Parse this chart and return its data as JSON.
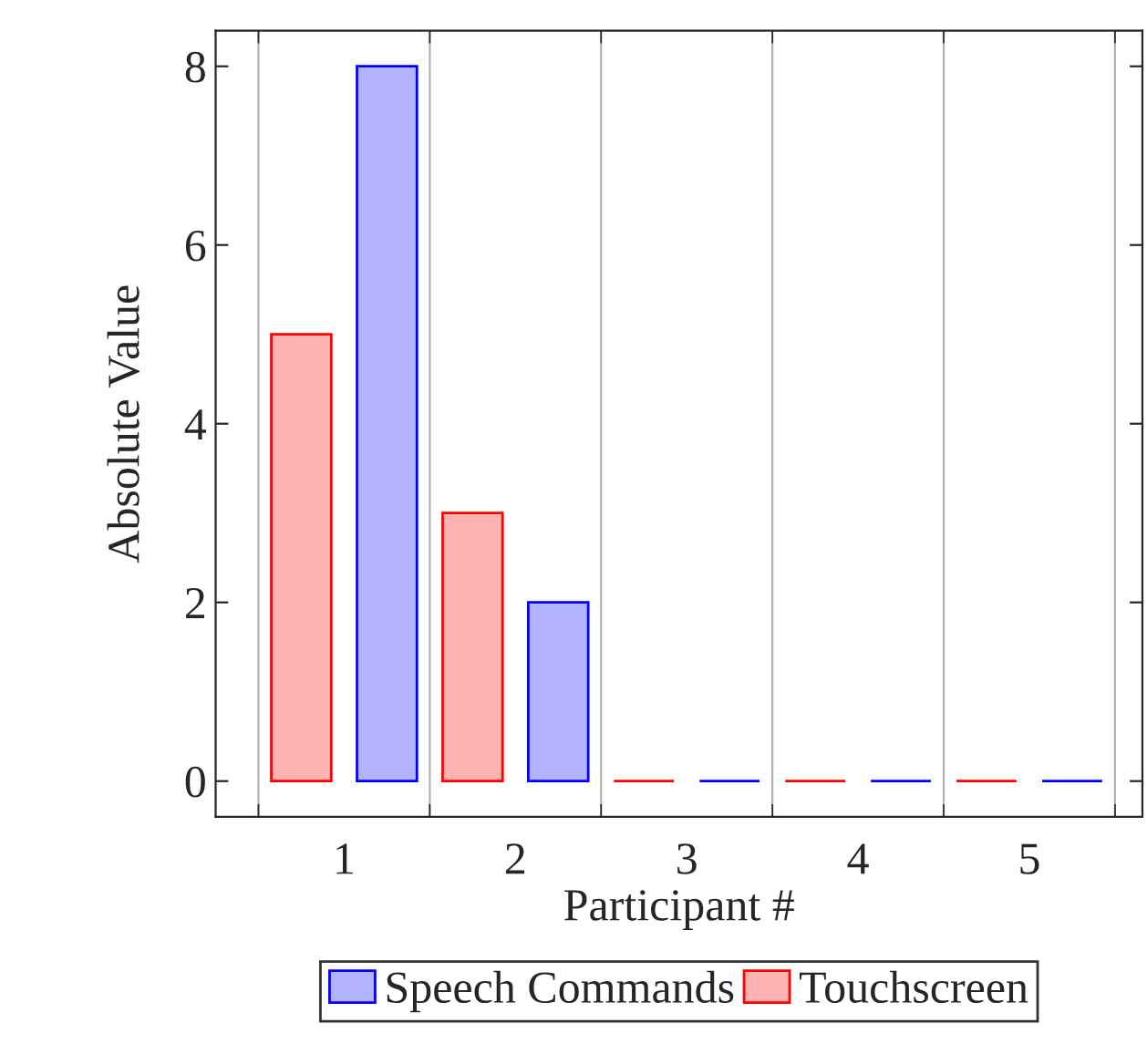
{
  "chart_data": {
    "type": "bar",
    "xlabel": "Participant #",
    "ylabel": "Absolute Value",
    "categories": [
      "1",
      "2",
      "3",
      "4",
      "5"
    ],
    "series": [
      {
        "name": "Speech Commands",
        "color": "#0000ff",
        "values": [
          8,
          2,
          0,
          0,
          0
        ]
      },
      {
        "name": "Touchscreen",
        "color": "#ff0000",
        "values": [
          5,
          3,
          0,
          0,
          0
        ]
      }
    ],
    "ylim": [
      -0.4,
      8.4
    ],
    "yticks": [
      0,
      2,
      4,
      6,
      8
    ],
    "grid": "x",
    "legend": "bottom"
  }
}
